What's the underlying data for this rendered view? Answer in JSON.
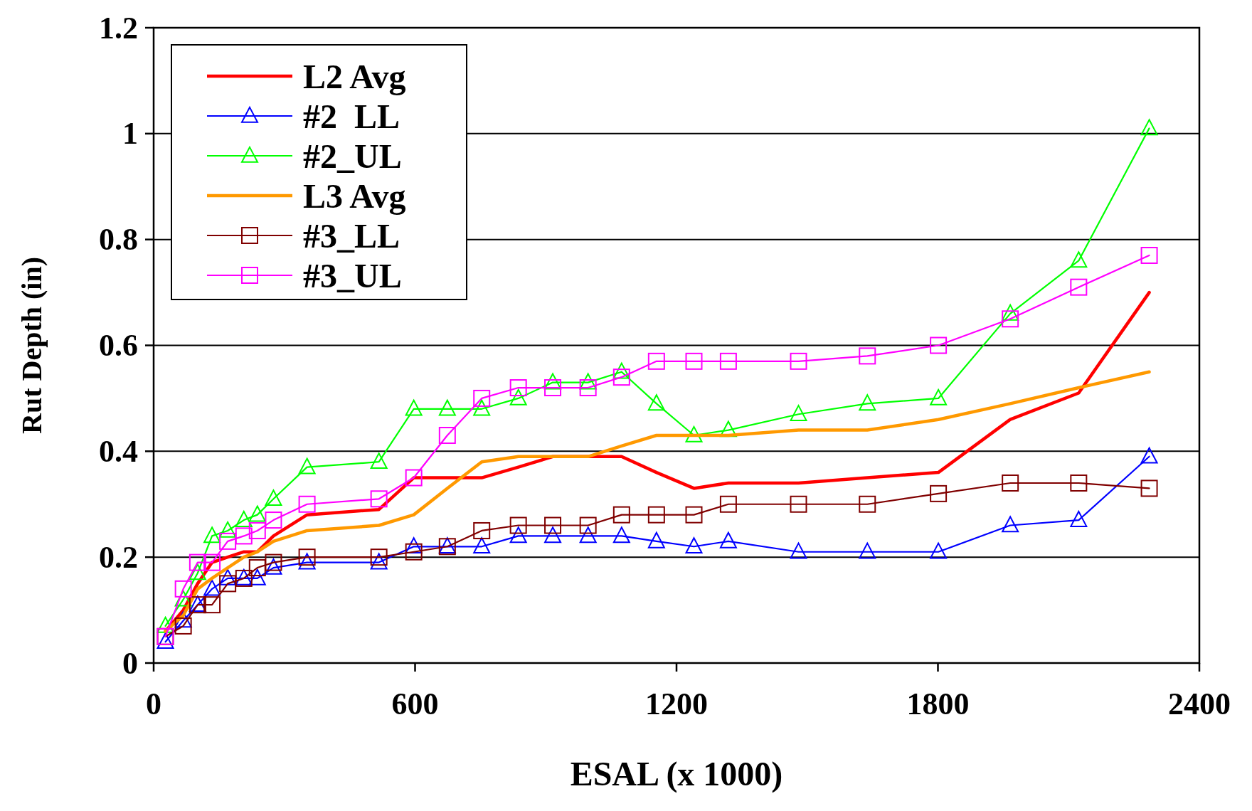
{
  "chart_data": {
    "type": "line",
    "xlabel": "ESAL (x 1000)",
    "ylabel": "Rut Depth (in)",
    "x": [
      27,
      68,
      101,
      134,
      170,
      207,
      238,
      275,
      352,
      517,
      597,
      674,
      753,
      837,
      916,
      997,
      1074,
      1154,
      1240,
      1319,
      1480,
      1638,
      1801,
      1966,
      2123,
      2285
    ],
    "series": [
      {
        "name": "L2 Avg",
        "color": "#ff0000",
        "marker": "none",
        "values": [
          0.06,
          0.1,
          0.15,
          0.19,
          0.2,
          0.21,
          0.21,
          0.24,
          0.28,
          0.29,
          0.35,
          0.35,
          0.35,
          0.37,
          0.39,
          0.39,
          0.39,
          0.36,
          0.33,
          0.34,
          0.34,
          0.35,
          0.36,
          0.46,
          0.51,
          0.7
        ]
      },
      {
        "name": "#2  LL",
        "color": "#0000ff",
        "marker": "triangle",
        "values": [
          0.04,
          0.08,
          0.11,
          0.14,
          0.16,
          0.16,
          0.16,
          0.18,
          0.19,
          0.19,
          0.22,
          0.22,
          0.22,
          0.24,
          0.24,
          0.24,
          0.24,
          0.23,
          0.22,
          0.23,
          0.21,
          0.21,
          0.21,
          0.26,
          0.27,
          0.39
        ]
      },
      {
        "name": "#2_UL",
        "color": "#00ff00",
        "marker": "triangle",
        "values": [
          0.07,
          0.12,
          0.17,
          0.24,
          0.25,
          0.27,
          0.28,
          0.31,
          0.37,
          0.38,
          0.48,
          0.48,
          0.48,
          0.5,
          0.53,
          0.53,
          0.55,
          0.49,
          0.43,
          0.44,
          0.47,
          0.49,
          0.5,
          0.66,
          0.76,
          1.01
        ]
      },
      {
        "name": "L3 Avg",
        "color": "#ff9900",
        "marker": "none",
        "values": [
          0.06,
          0.09,
          0.14,
          0.16,
          0.18,
          0.2,
          0.21,
          0.23,
          0.25,
          0.26,
          0.28,
          0.33,
          0.38,
          0.39,
          0.39,
          0.39,
          0.41,
          0.43,
          0.43,
          0.43,
          0.44,
          0.44,
          0.46,
          0.49,
          0.52,
          0.55
        ]
      },
      {
        "name": "#3_LL",
        "color": "#800000",
        "marker": "square",
        "values": [
          0.05,
          0.07,
          0.11,
          0.11,
          0.15,
          0.16,
          0.18,
          0.19,
          0.2,
          0.2,
          0.21,
          0.22,
          0.25,
          0.26,
          0.26,
          0.26,
          0.28,
          0.28,
          0.28,
          0.3,
          0.3,
          0.3,
          0.32,
          0.34,
          0.34,
          0.33
        ]
      },
      {
        "name": "#3_UL",
        "color": "#ff00ff",
        "marker": "square",
        "values": [
          0.05,
          0.14,
          0.19,
          0.19,
          0.23,
          0.24,
          0.25,
          0.27,
          0.3,
          0.31,
          0.35,
          0.43,
          0.5,
          0.52,
          0.52,
          0.52,
          0.54,
          0.57,
          0.57,
          0.57,
          0.57,
          0.58,
          0.6,
          0.65,
          0.71,
          0.77
        ]
      }
    ],
    "xlim": [
      0,
      2400
    ],
    "xticks": [
      0,
      600,
      1200,
      1800,
      2400
    ],
    "ylim": [
      0,
      1.2
    ],
    "yticks": [
      0,
      0.2,
      0.4,
      0.6,
      0.8,
      1,
      1.2
    ],
    "grid": "y",
    "legend": "top left"
  }
}
